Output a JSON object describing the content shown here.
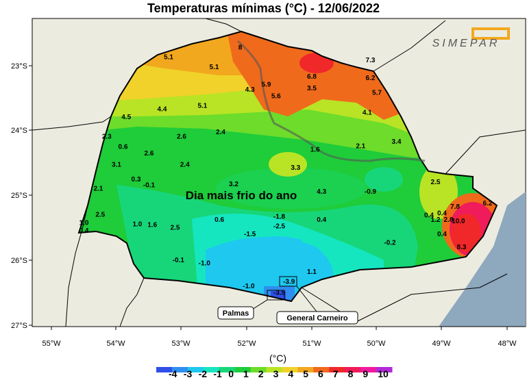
{
  "title": "Temperaturas mínimas (°C) - 12/06/2022",
  "logo_text": "SIMEPAR",
  "annotation": "Dia mais frio do ano",
  "unit": "(°C)",
  "axes": {
    "x_ticks": [
      "55°W",
      "54°W",
      "53°W",
      "52°W",
      "51°W",
      "50°W",
      "49°W",
      "48°W"
    ],
    "y_ticks": [
      "23°S",
      "24°S",
      "25°S",
      "26°S",
      "27°S"
    ]
  },
  "callouts": {
    "palmas": "Palmas",
    "general_carneiro": "General Carneiro"
  },
  "colorbar": {
    "labels": [
      "-4",
      "-3",
      "-2",
      "-1",
      "0",
      "1",
      "2",
      "3",
      "4",
      "5",
      "6",
      "7",
      "8",
      "9",
      "10"
    ],
    "colors": [
      "#2f4fe6",
      "#2f8ef0",
      "#1ec8ef",
      "#15e6c0",
      "#17d67a",
      "#1fcc3a",
      "#6ddc2a",
      "#b8e425",
      "#f0d22a",
      "#f2a81e",
      "#f06a1c",
      "#f0282a",
      "#f01b5a",
      "#f01aa0",
      "#b02ad8"
    ]
  },
  "chart_data": {
    "type": "map",
    "region": "Paraná",
    "date": "12/06/2022",
    "stations": [
      {
        "lon": -52.1,
        "lat": -22.75,
        "value": "8"
      },
      {
        "lon": -53.2,
        "lat": -22.9,
        "value": "5.1"
      },
      {
        "lon": -52.5,
        "lat": -23.05,
        "value": "5.1"
      },
      {
        "lon": -51.0,
        "lat": -23.2,
        "value": "6.8"
      },
      {
        "lon": -50.1,
        "lat": -22.95,
        "value": "7.3"
      },
      {
        "lon": -50.1,
        "lat": -23.22,
        "value": "6.2"
      },
      {
        "lon": -50.0,
        "lat": -23.45,
        "value": "5.7"
      },
      {
        "lon": -51.0,
        "lat": -23.38,
        "value": "3.5"
      },
      {
        "lon": -51.7,
        "lat": -23.32,
        "value": "5.9"
      },
      {
        "lon": -51.55,
        "lat": -23.5,
        "value": "5.6"
      },
      {
        "lon": -51.95,
        "lat": -23.4,
        "value": "4.3"
      },
      {
        "lon": -53.3,
        "lat": -23.7,
        "value": "4.4"
      },
      {
        "lon": -52.68,
        "lat": -23.65,
        "value": "5.1"
      },
      {
        "lon": -50.15,
        "lat": -23.75,
        "value": "4.1"
      },
      {
        "lon": -53.85,
        "lat": -23.82,
        "value": "4.5"
      },
      {
        "lon": -54.15,
        "lat": -24.12,
        "value": "2.3"
      },
      {
        "lon": -52.4,
        "lat": -24.05,
        "value": "2.4"
      },
      {
        "lon": -53.0,
        "lat": -24.12,
        "value": "2.6"
      },
      {
        "lon": -49.7,
        "lat": -24.2,
        "value": "3.4"
      },
      {
        "lon": -50.95,
        "lat": -24.32,
        "value": "1.6"
      },
      {
        "lon": -50.25,
        "lat": -24.27,
        "value": "2.1"
      },
      {
        "lon": -53.9,
        "lat": -24.28,
        "value": "0.6"
      },
      {
        "lon": -53.5,
        "lat": -24.38,
        "value": "2.6"
      },
      {
        "lon": -54.0,
        "lat": -24.55,
        "value": "3.1"
      },
      {
        "lon": -52.95,
        "lat": -24.55,
        "value": "2.4"
      },
      {
        "lon": -51.25,
        "lat": -24.6,
        "value": "3.3"
      },
      {
        "lon": -53.7,
        "lat": -24.78,
        "value": "0.3"
      },
      {
        "lon": -53.5,
        "lat": -24.87,
        "value": "-0.1"
      },
      {
        "lon": -52.2,
        "lat": -24.85,
        "value": "3.2"
      },
      {
        "lon": -54.28,
        "lat": -24.92,
        "value": "2.1"
      },
      {
        "lon": -50.85,
        "lat": -24.97,
        "value": "4.3"
      },
      {
        "lon": -50.1,
        "lat": -24.97,
        "value": "-0.9"
      },
      {
        "lon": -49.1,
        "lat": -24.82,
        "value": "2.5"
      },
      {
        "lon": -48.8,
        "lat": -25.2,
        "value": "7.8"
      },
      {
        "lon": -48.3,
        "lat": -25.15,
        "value": "6.2"
      },
      {
        "lon": -54.25,
        "lat": -25.32,
        "value": "2.5"
      },
      {
        "lon": -49.0,
        "lat": -25.3,
        "value": "0.4"
      },
      {
        "lon": -48.9,
        "lat": -25.4,
        "value": "2.8"
      },
      {
        "lon": -51.5,
        "lat": -25.35,
        "value": "-1.8"
      },
      {
        "lon": -52.42,
        "lat": -25.4,
        "value": "0.6"
      },
      {
        "lon": -50.85,
        "lat": -25.4,
        "value": "0.4"
      },
      {
        "lon": -49.2,
        "lat": -25.33,
        "value": "0.4"
      },
      {
        "lon": -49.1,
        "lat": -25.4,
        "value": "1.2"
      },
      {
        "lon": -48.75,
        "lat": -25.42,
        "value": "10.0"
      },
      {
        "lon": -54.5,
        "lat": -25.45,
        "value": "1.0"
      },
      {
        "lon": -53.68,
        "lat": -25.47,
        "value": "1.0"
      },
      {
        "lon": -53.45,
        "lat": -25.48,
        "value": "1.6"
      },
      {
        "lon": -53.1,
        "lat": -25.52,
        "value": "2.5"
      },
      {
        "lon": -51.5,
        "lat": -25.5,
        "value": "-2.5"
      },
      {
        "lon": -54.5,
        "lat": -25.57,
        "value": "0.4"
      },
      {
        "lon": -51.95,
        "lat": -25.62,
        "value": "-1.5"
      },
      {
        "lon": -49.0,
        "lat": -25.62,
        "value": "0.4"
      },
      {
        "lon": -49.8,
        "lat": -25.75,
        "value": "-0.2"
      },
      {
        "lon": -48.7,
        "lat": -25.82,
        "value": "8.3"
      },
      {
        "lon": -53.05,
        "lat": -26.02,
        "value": "-0.1"
      },
      {
        "lon": -52.65,
        "lat": -26.07,
        "value": "-1.0"
      },
      {
        "lon": -51.0,
        "lat": -26.2,
        "value": "1.1"
      },
      {
        "lon": -51.35,
        "lat": -26.35,
        "value": "-3.9"
      },
      {
        "lon": -51.97,
        "lat": -26.42,
        "value": "-1.0"
      },
      {
        "lon": -51.5,
        "lat": -26.52,
        "value": "-3.5"
      }
    ],
    "xlim": [
      -55.25,
      -47.75
    ],
    "ylim": [
      -27.0,
      -22.3
    ]
  }
}
